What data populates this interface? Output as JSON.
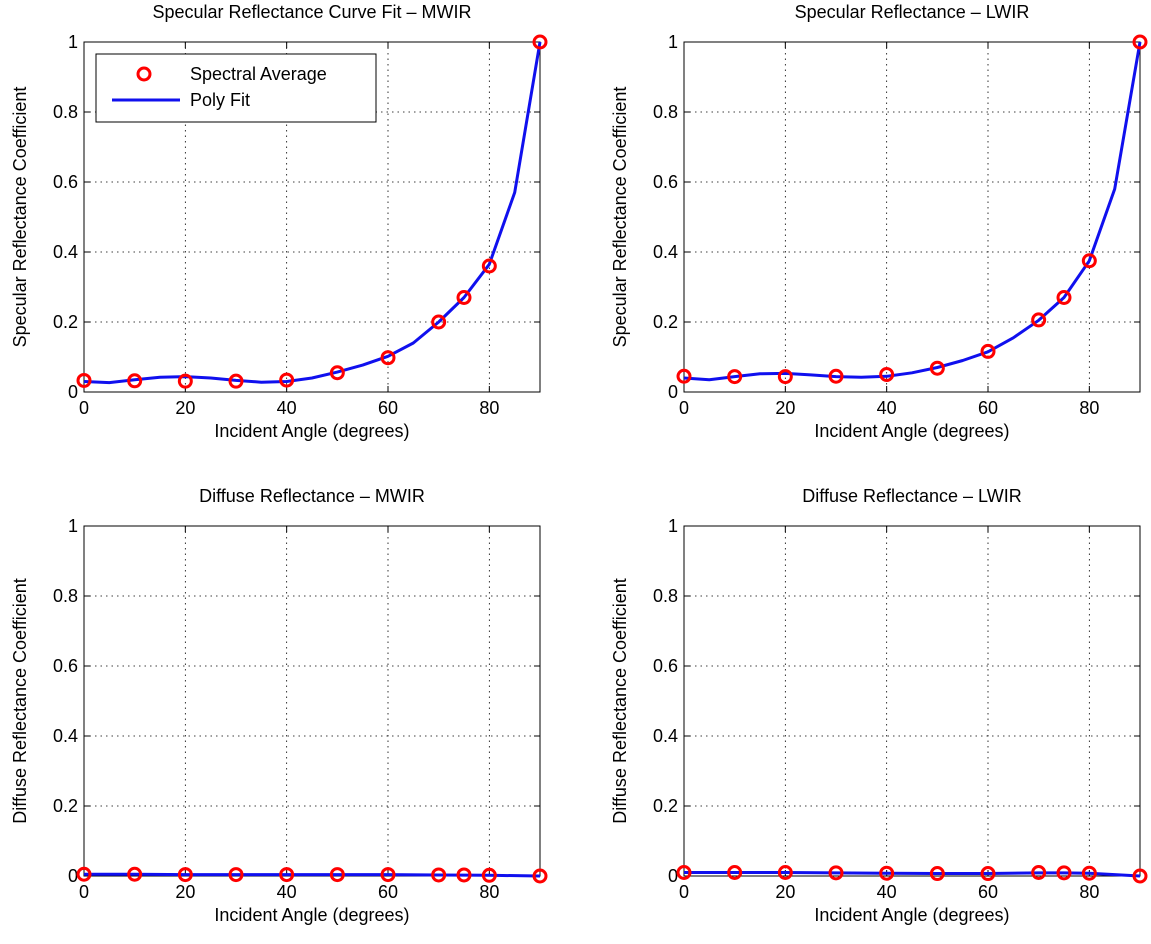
{
  "chart_data": [
    {
      "type": "line",
      "title": "Specular Reflectance Curve Fit – MWIR",
      "xlabel": "Incident Angle (degrees)",
      "ylabel": "Specular Reflectance Coefficient",
      "xlim": [
        0,
        90
      ],
      "ylim": [
        0,
        1
      ],
      "xticks": [
        0,
        20,
        40,
        60,
        80
      ],
      "yticks": [
        0,
        0.2,
        0.4,
        0.6,
        0.8,
        1
      ],
      "grid": true,
      "legend": {
        "placement": "top-left",
        "entries": [
          "Spectral Average",
          "Poly Fit"
        ]
      },
      "series": [
        {
          "name": "Spectral Average",
          "style": "markers",
          "x": [
            0,
            10,
            20,
            30,
            40,
            50,
            60,
            70,
            75,
            80,
            90
          ],
          "y": [
            0.033,
            0.032,
            0.031,
            0.031,
            0.034,
            0.055,
            0.098,
            0.2,
            0.27,
            0.36,
            1.0
          ]
        },
        {
          "name": "Poly Fit",
          "style": "line",
          "x": [
            0,
            5,
            10,
            15,
            20,
            25,
            30,
            35,
            40,
            45,
            50,
            55,
            60,
            65,
            70,
            75,
            80,
            85,
            90
          ],
          "y": [
            0.03,
            0.027,
            0.035,
            0.042,
            0.044,
            0.04,
            0.033,
            0.028,
            0.03,
            0.04,
            0.057,
            0.077,
            0.102,
            0.14,
            0.2,
            0.27,
            0.365,
            0.57,
            1.0
          ]
        }
      ]
    },
    {
      "type": "line",
      "title": "Specular Reflectance – LWIR",
      "xlabel": "Incident Angle (degrees)",
      "ylabel": "Specular Reflectance Coefficient",
      "xlim": [
        0,
        90
      ],
      "ylim": [
        0,
        1
      ],
      "xticks": [
        0,
        20,
        40,
        60,
        80
      ],
      "yticks": [
        0,
        0.2,
        0.4,
        0.6,
        0.8,
        1
      ],
      "grid": true,
      "series": [
        {
          "name": "Spectral Average",
          "style": "markers",
          "x": [
            0,
            10,
            20,
            30,
            40,
            50,
            60,
            70,
            75,
            80,
            90
          ],
          "y": [
            0.045,
            0.044,
            0.044,
            0.045,
            0.05,
            0.068,
            0.116,
            0.206,
            0.27,
            0.375,
            1.0
          ]
        },
        {
          "name": "Poly Fit",
          "style": "line",
          "x": [
            0,
            5,
            10,
            15,
            20,
            25,
            30,
            35,
            40,
            45,
            50,
            55,
            60,
            65,
            70,
            75,
            80,
            85,
            90
          ],
          "y": [
            0.04,
            0.035,
            0.044,
            0.052,
            0.053,
            0.049,
            0.044,
            0.042,
            0.045,
            0.055,
            0.07,
            0.09,
            0.115,
            0.155,
            0.205,
            0.27,
            0.375,
            0.58,
            1.0
          ]
        }
      ]
    },
    {
      "type": "line",
      "title": "Diffuse Reflectance – MWIR",
      "xlabel": "Incident Angle (degrees)",
      "ylabel": "Diffuse Reflectance Coefficient",
      "xlim": [
        0,
        90
      ],
      "ylim": [
        0,
        1
      ],
      "xticks": [
        0,
        20,
        40,
        60,
        80
      ],
      "yticks": [
        0,
        0.2,
        0.4,
        0.6,
        0.8,
        1
      ],
      "grid": true,
      "series": [
        {
          "name": "Spectral Average",
          "style": "markers",
          "x": [
            0,
            10,
            20,
            30,
            40,
            50,
            60,
            70,
            75,
            80,
            90
          ],
          "y": [
            0.005,
            0.005,
            0.004,
            0.004,
            0.004,
            0.004,
            0.004,
            0.003,
            0.003,
            0.002,
            0.0
          ]
        },
        {
          "name": "Poly Fit",
          "style": "line",
          "x": [
            0,
            10,
            20,
            30,
            40,
            50,
            60,
            70,
            80,
            90
          ],
          "y": [
            0.005,
            0.005,
            0.004,
            0.004,
            0.004,
            0.004,
            0.004,
            0.003,
            0.002,
            0.0
          ]
        }
      ]
    },
    {
      "type": "line",
      "title": "Diffuse Reflectance – LWIR",
      "xlabel": "Incident Angle (degrees)",
      "ylabel": "Diffuse Reflectance Coefficient",
      "xlim": [
        0,
        90
      ],
      "ylim": [
        0,
        1
      ],
      "xticks": [
        0,
        20,
        40,
        60,
        80
      ],
      "yticks": [
        0,
        0.2,
        0.4,
        0.6,
        0.8,
        1
      ],
      "grid": true,
      "series": [
        {
          "name": "Spectral Average",
          "style": "markers",
          "x": [
            0,
            10,
            20,
            30,
            40,
            50,
            60,
            70,
            75,
            80,
            90
          ],
          "y": [
            0.01,
            0.01,
            0.01,
            0.009,
            0.008,
            0.007,
            0.007,
            0.01,
            0.009,
            0.008,
            0.0
          ]
        },
        {
          "name": "Poly Fit",
          "style": "line",
          "x": [
            0,
            10,
            20,
            30,
            40,
            50,
            60,
            70,
            75,
            80,
            90
          ],
          "y": [
            0.01,
            0.01,
            0.01,
            0.009,
            0.008,
            0.007,
            0.007,
            0.009,
            0.009,
            0.008,
            0.0
          ]
        }
      ]
    }
  ]
}
